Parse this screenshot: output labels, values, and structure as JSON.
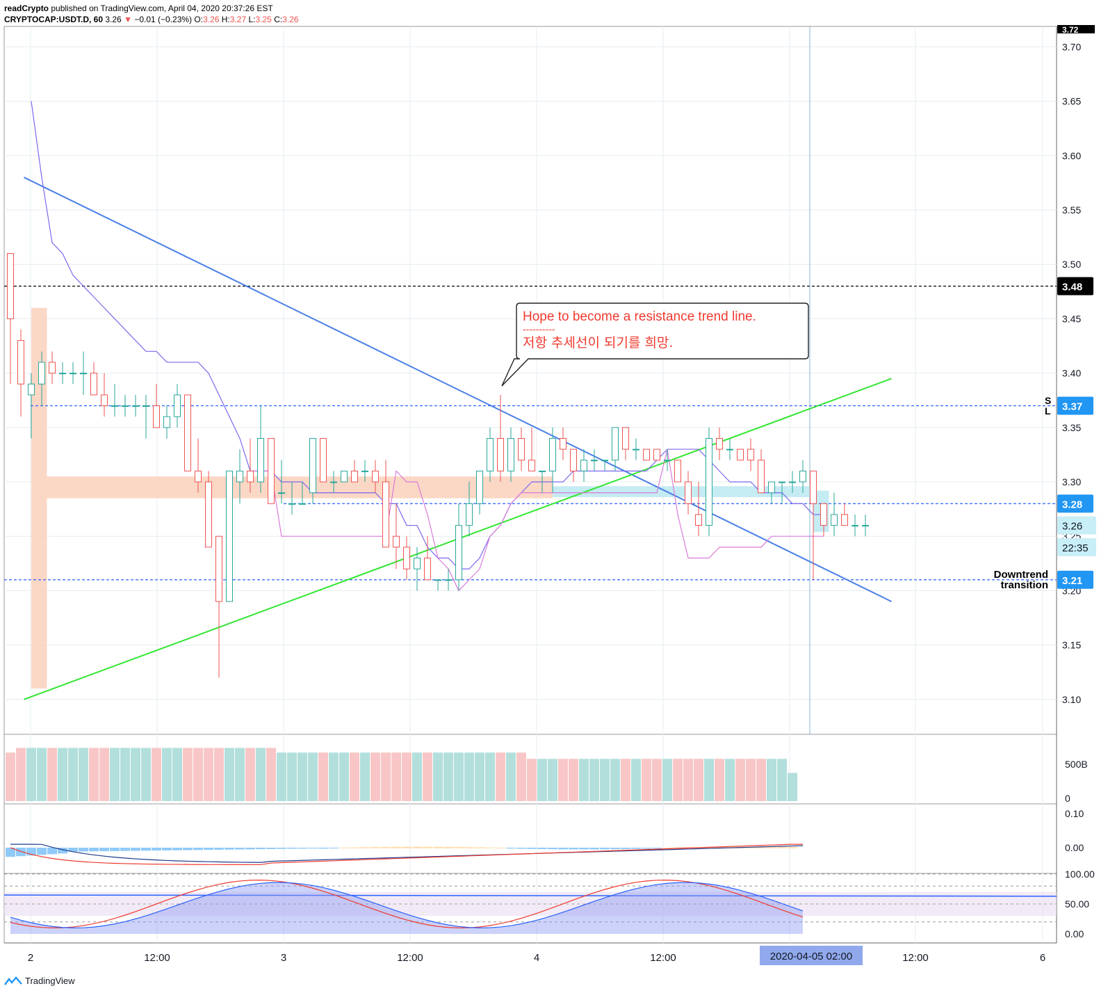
{
  "header": {
    "line1_author": "readCrypto",
    "line1_rest": "published on TradingView.com, April 04, 2020 20:37:26 EST",
    "symbol": "CRYPTOCAP:USDT.D, 60",
    "last": "3.26",
    "arrow": "▼",
    "change": "−0.01 (−0.23%)",
    "o_label": "O:",
    "o": "3.26",
    "h_label": "H:",
    "h": "3.27",
    "l_label": "L:",
    "l": "3.25",
    "c_label": "C:",
    "c": "3.26"
  },
  "footer": {
    "brand": "TradingView"
  },
  "colors": {
    "up": "#26a69a",
    "down": "#ef5350",
    "trend_blue": "#4a7fe6",
    "trend_green": "#33e633",
    "level_blue": "#2962ff",
    "ma": "#7b68ee",
    "magenta": "#d97ad9",
    "label_bg": "#2196f3"
  },
  "chart_data": {
    "type": "candlestick",
    "title": "",
    "ylim": [
      3.07,
      3.73
    ],
    "y_ticks": [
      "3.70",
      "3.65",
      "3.60",
      "3.55",
      "3.50",
      "3.45",
      "3.40",
      "3.35",
      "3.30",
      "3.25",
      "3.20",
      "3.15",
      "3.10"
    ],
    "x_ticks": [
      "2",
      "12:00",
      "3",
      "12:00",
      "4",
      "12:00",
      "12:00",
      "6"
    ],
    "crosshair_x_label": "2020-04-05   02:00",
    "top_cut_label": "3.72",
    "price_labels": [
      {
        "text": "3.48",
        "value": 3.48,
        "style": "black"
      },
      {
        "text": "3.37",
        "value": 3.37,
        "style": "blue"
      },
      {
        "text": "3.28",
        "value": 3.28,
        "style": "blue"
      },
      {
        "text": "3.26",
        "value": 3.26,
        "style": "light"
      },
      {
        "text": "22:35",
        "value": 3.24,
        "style": "light"
      },
      {
        "text": "3.21",
        "value": 3.21,
        "style": "blue"
      }
    ],
    "side_markers": [
      "S",
      "L"
    ],
    "annotation": {
      "line1": "Hope to become a resistance trend line.",
      "line2": "----------",
      "line3": "저항 추세선이 되기를 희망."
    },
    "trend_label_1": "Downtrend",
    "trend_label_2": "transition",
    "horizontal_levels": [
      {
        "value": 3.48,
        "color": "black"
      },
      {
        "value": 3.37,
        "color": "blue"
      },
      {
        "value": 3.28,
        "color": "blue"
      },
      {
        "value": 3.21,
        "color": "blue"
      }
    ],
    "resistance_line": {
      "t0": -0.7,
      "v0": 3.58,
      "t1": 82.5,
      "v1": 3.19
    },
    "support_line": {
      "t0": -0.7,
      "v0": 3.1,
      "t1": 82.5,
      "v1": 3.395
    },
    "candles": [
      [
        3.51,
        3.51,
        3.39,
        3.45
      ],
      [
        3.43,
        3.44,
        3.36,
        3.39
      ],
      [
        3.38,
        3.4,
        3.34,
        3.39
      ],
      [
        3.39,
        3.42,
        3.37,
        3.41
      ],
      [
        3.41,
        3.42,
        3.39,
        3.4
      ],
      [
        3.4,
        3.41,
        3.39,
        3.4
      ],
      [
        3.4,
        3.41,
        3.39,
        3.4
      ],
      [
        3.4,
        3.42,
        3.38,
        3.4
      ],
      [
        3.4,
        3.41,
        3.38,
        3.38
      ],
      [
        3.38,
        3.4,
        3.36,
        3.37
      ],
      [
        3.37,
        3.39,
        3.36,
        3.37
      ],
      [
        3.37,
        3.38,
        3.36,
        3.37
      ],
      [
        3.37,
        3.38,
        3.36,
        3.37
      ],
      [
        3.37,
        3.38,
        3.34,
        3.37
      ],
      [
        3.37,
        3.39,
        3.35,
        3.35
      ],
      [
        3.35,
        3.37,
        3.34,
        3.36
      ],
      [
        3.36,
        3.39,
        3.35,
        3.38
      ],
      [
        3.38,
        3.38,
        3.31,
        3.31
      ],
      [
        3.31,
        3.34,
        3.29,
        3.3
      ],
      [
        3.3,
        3.31,
        3.24,
        3.24
      ],
      [
        3.25,
        3.25,
        3.12,
        3.19
      ],
      [
        3.19,
        3.31,
        3.19,
        3.31
      ],
      [
        3.3,
        3.33,
        3.28,
        3.31
      ],
      [
        3.31,
        3.34,
        3.29,
        3.3
      ],
      [
        3.3,
        3.37,
        3.29,
        3.34
      ],
      [
        3.34,
        3.34,
        3.28,
        3.28
      ],
      [
        3.29,
        3.32,
        3.28,
        3.29
      ],
      [
        3.28,
        3.3,
        3.27,
        3.28
      ],
      [
        3.28,
        3.3,
        3.28,
        3.28
      ],
      [
        3.29,
        3.34,
        3.28,
        3.34
      ],
      [
        3.34,
        3.34,
        3.3,
        3.3
      ],
      [
        3.3,
        3.31,
        3.29,
        3.3
      ],
      [
        3.3,
        3.31,
        3.3,
        3.31
      ],
      [
        3.31,
        3.32,
        3.3,
        3.3
      ],
      [
        3.31,
        3.32,
        3.3,
        3.31
      ],
      [
        3.31,
        3.32,
        3.29,
        3.3
      ],
      [
        3.3,
        3.32,
        3.24,
        3.24
      ],
      [
        3.25,
        3.28,
        3.22,
        3.24
      ],
      [
        3.24,
        3.25,
        3.21,
        3.22
      ],
      [
        3.22,
        3.24,
        3.2,
        3.23
      ],
      [
        3.23,
        3.25,
        3.21,
        3.21
      ],
      [
        3.21,
        3.21,
        3.2,
        3.21
      ],
      [
        3.21,
        3.22,
        3.2,
        3.21
      ],
      [
        3.21,
        3.28,
        3.2,
        3.26
      ],
      [
        3.26,
        3.3,
        3.25,
        3.28
      ],
      [
        3.28,
        3.31,
        3.27,
        3.31
      ],
      [
        3.31,
        3.35,
        3.3,
        3.34
      ],
      [
        3.34,
        3.38,
        3.3,
        3.31
      ],
      [
        3.31,
        3.35,
        3.3,
        3.34
      ],
      [
        3.34,
        3.35,
        3.31,
        3.32
      ],
      [
        3.32,
        3.35,
        3.31,
        3.31
      ],
      [
        3.31,
        3.31,
        3.29,
        3.31
      ],
      [
        3.31,
        3.35,
        3.29,
        3.34
      ],
      [
        3.34,
        3.35,
        3.32,
        3.33
      ],
      [
        3.33,
        3.33,
        3.3,
        3.31
      ],
      [
        3.31,
        3.33,
        3.3,
        3.32
      ],
      [
        3.32,
        3.33,
        3.31,
        3.32
      ],
      [
        3.32,
        3.32,
        3.31,
        3.32
      ],
      [
        3.32,
        3.35,
        3.31,
        3.35
      ],
      [
        3.35,
        3.35,
        3.32,
        3.33
      ],
      [
        3.33,
        3.34,
        3.32,
        3.33
      ],
      [
        3.33,
        3.33,
        3.32,
        3.32
      ],
      [
        3.33,
        3.33,
        3.32,
        3.32
      ],
      [
        3.32,
        3.33,
        3.31,
        3.32
      ],
      [
        3.32,
        3.32,
        3.3,
        3.3
      ],
      [
        3.3,
        3.31,
        3.27,
        3.28
      ],
      [
        3.27,
        3.3,
        3.25,
        3.26
      ],
      [
        3.26,
        3.35,
        3.25,
        3.34
      ],
      [
        3.34,
        3.35,
        3.32,
        3.33
      ],
      [
        3.33,
        3.34,
        3.32,
        3.33
      ],
      [
        3.33,
        3.33,
        3.32,
        3.32
      ],
      [
        3.33,
        3.34,
        3.31,
        3.32
      ],
      [
        3.32,
        3.33,
        3.29,
        3.29
      ],
      [
        3.29,
        3.3,
        3.28,
        3.3
      ],
      [
        3.3,
        3.3,
        3.28,
        3.3
      ],
      [
        3.3,
        3.31,
        3.29,
        3.3
      ],
      [
        3.3,
        3.32,
        3.29,
        3.31
      ],
      [
        3.31,
        3.31,
        3.21,
        3.28
      ],
      [
        3.28,
        3.28,
        3.25,
        3.26
      ],
      [
        3.26,
        3.29,
        3.25,
        3.27
      ],
      [
        3.27,
        3.28,
        3.26,
        3.26
      ],
      [
        3.26,
        3.27,
        3.25,
        3.26
      ],
      [
        3.26,
        3.27,
        3.25,
        3.26
      ]
    ],
    "cloud": [
      {
        "t0": 0,
        "t1": 1.5,
        "top": 3.46,
        "bottom": 3.11,
        "color": "#fbd3bf"
      },
      {
        "t0": 1.5,
        "t1": 50,
        "top": 3.305,
        "bottom": 3.285,
        "color": "#fbd3bf"
      },
      {
        "t0": 50,
        "t1": 75,
        "top": 3.296,
        "bottom": 3.286,
        "color": "#bfe9f2"
      },
      {
        "t0": 75,
        "t1": 76.5,
        "top": 3.292,
        "bottom": 3.254,
        "color": "#bfe9f2"
      }
    ],
    "ma_line": [
      [
        0,
        3.65
      ],
      [
        1,
        3.58
      ],
      [
        2,
        3.52
      ],
      [
        3,
        3.51
      ],
      [
        4,
        3.49
      ],
      [
        5,
        3.48
      ],
      [
        6,
        3.47
      ],
      [
        7,
        3.46
      ],
      [
        8,
        3.45
      ],
      [
        9,
        3.44
      ],
      [
        10,
        3.43
      ],
      [
        11,
        3.42
      ],
      [
        12,
        3.42
      ],
      [
        13,
        3.41
      ],
      [
        14,
        3.41
      ],
      [
        15,
        3.41
      ],
      [
        16,
        3.41
      ],
      [
        17,
        3.4
      ],
      [
        18,
        3.38
      ],
      [
        19,
        3.36
      ],
      [
        20,
        3.34
      ],
      [
        21,
        3.31
      ],
      [
        22,
        3.31
      ],
      [
        23,
        3.31
      ],
      [
        24,
        3.3
      ],
      [
        25,
        3.3
      ],
      [
        26,
        3.3
      ],
      [
        27,
        3.29
      ],
      [
        28,
        3.29
      ],
      [
        29,
        3.29
      ],
      [
        30,
        3.29
      ],
      [
        31,
        3.29
      ],
      [
        32,
        3.29
      ],
      [
        33,
        3.29
      ],
      [
        34,
        3.28
      ],
      [
        35,
        3.28
      ],
      [
        36,
        3.26
      ],
      [
        37,
        3.26
      ],
      [
        38,
        3.24
      ],
      [
        39,
        3.23
      ],
      [
        40,
        3.23
      ],
      [
        41,
        3.22
      ],
      [
        42,
        3.22
      ],
      [
        43,
        3.23
      ],
      [
        44,
        3.25
      ],
      [
        45,
        3.26
      ],
      [
        46,
        3.28
      ],
      [
        47,
        3.29
      ],
      [
        48,
        3.3
      ],
      [
        49,
        3.3
      ],
      [
        50,
        3.3
      ],
      [
        51,
        3.3
      ],
      [
        52,
        3.31
      ],
      [
        53,
        3.31
      ],
      [
        54,
        3.31
      ],
      [
        55,
        3.31
      ],
      [
        56,
        3.31
      ],
      [
        57,
        3.31
      ],
      [
        58,
        3.31
      ],
      [
        59,
        3.31
      ],
      [
        60,
        3.32
      ],
      [
        61,
        3.33
      ],
      [
        62,
        3.33
      ],
      [
        63,
        3.33
      ],
      [
        64,
        3.33
      ],
      [
        65,
        3.32
      ],
      [
        66,
        3.31
      ],
      [
        67,
        3.3
      ],
      [
        68,
        3.3
      ],
      [
        69,
        3.3
      ],
      [
        70,
        3.29
      ],
      [
        71,
        3.29
      ],
      [
        72,
        3.29
      ],
      [
        73,
        3.28
      ],
      [
        74,
        3.28
      ],
      [
        75,
        3.27
      ],
      [
        76,
        3.27
      ]
    ],
    "magenta_line": [
      [
        21,
        3.31
      ],
      [
        22,
        3.31
      ],
      [
        23,
        3.31
      ],
      [
        24,
        3.25
      ],
      [
        30,
        3.25
      ],
      [
        33,
        3.25
      ],
      [
        34,
        3.25
      ],
      [
        35,
        3.31
      ],
      [
        36,
        3.3
      ],
      [
        37,
        3.3
      ],
      [
        38,
        3.27
      ],
      [
        39,
        3.23
      ],
      [
        40,
        3.22
      ],
      [
        41,
        3.2
      ],
      [
        42,
        3.21
      ],
      [
        43,
        3.22
      ],
      [
        44,
        3.25
      ],
      [
        45,
        3.26
      ],
      [
        46,
        3.28
      ],
      [
        47,
        3.29
      ],
      [
        48,
        3.29
      ],
      [
        49,
        3.29
      ],
      [
        50,
        3.29
      ],
      [
        59,
        3.29
      ],
      [
        60,
        3.29
      ],
      [
        61,
        3.33
      ],
      [
        62,
        3.27
      ],
      [
        63,
        3.23
      ],
      [
        64,
        3.23
      ],
      [
        65,
        3.23
      ],
      [
        66,
        3.24
      ],
      [
        67,
        3.24
      ],
      [
        70,
        3.24
      ],
      [
        71,
        3.25
      ],
      [
        76,
        3.25
      ]
    ],
    "volume": {
      "axis_labels": [
        "500B",
        "0"
      ],
      "values": [
        620,
        680,
        680,
        680,
        680,
        680,
        680,
        680,
        680,
        680,
        680,
        680,
        680,
        680,
        680,
        680,
        680,
        680,
        680,
        680,
        680,
        680,
        680,
        680,
        680,
        680,
        620,
        620,
        620,
        620,
        620,
        620,
        620,
        620,
        620,
        620,
        620,
        620,
        620,
        620,
        620,
        620,
        620,
        620,
        620,
        620,
        620,
        620,
        620,
        620,
        540,
        540,
        540,
        540,
        540,
        540,
        540,
        540,
        540,
        540,
        540,
        540,
        540,
        540,
        540,
        540,
        540,
        540,
        540,
        540,
        540,
        540,
        540,
        540,
        540,
        360
      ],
      "max": 800
    },
    "macd": {
      "axis_labels": [
        "0.10",
        "0.00"
      ],
      "ylim": [
        -0.06,
        0.12
      ]
    },
    "rsi": {
      "axis_labels": [
        "100.00",
        "50.00",
        "0.00"
      ],
      "ylim": [
        0,
        100
      ]
    }
  }
}
